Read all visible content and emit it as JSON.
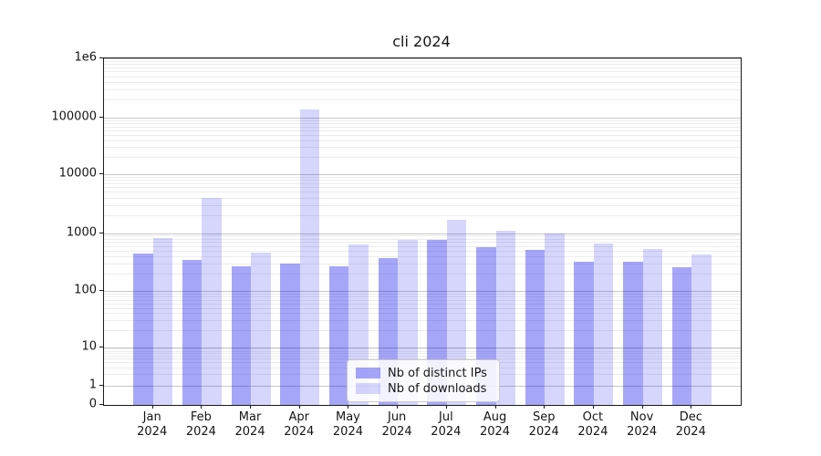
{
  "chart_data": {
    "type": "bar",
    "title": "cli 2024",
    "categories": [
      "Jan",
      "Feb",
      "Mar",
      "Apr",
      "May",
      "Jun",
      "Jul",
      "Aug",
      "Sep",
      "Oct",
      "Nov",
      "Dec"
    ],
    "category_year": "2024",
    "series": [
      {
        "name": "Nb of distinct IPs",
        "color": "rgba(0,0,238,0.35)",
        "values": [
          450,
          340,
          270,
          300,
          270,
          370,
          770,
          570,
          510,
          320,
          320,
          260
        ]
      },
      {
        "name": "Nb of downloads",
        "color": "rgba(0,0,238,0.16)",
        "values": [
          820,
          3900,
          460,
          140000,
          630,
          760,
          1650,
          1100,
          1000,
          660,
          540,
          430
        ]
      }
    ],
    "yscale": "symlog",
    "ylim": [
      0,
      1000000
    ],
    "y_ticks": [
      {
        "label": "1e6",
        "value": 1000000
      },
      {
        "label": "100000",
        "value": 100000
      },
      {
        "label": "10000",
        "value": 10000
      },
      {
        "label": "1000",
        "value": 1000
      },
      {
        "label": "100",
        "value": 100
      },
      {
        "label": "10",
        "value": 10
      },
      {
        "label": "1",
        "value": 1
      },
      {
        "label": "0",
        "value": 0
      }
    ],
    "grid": true,
    "legend_position": "lower center"
  },
  "colors": {
    "grid_major": "#c8c8c8",
    "grid_minor": "#ececec",
    "spine": "#1a1a1a",
    "background": "#ffffff"
  }
}
